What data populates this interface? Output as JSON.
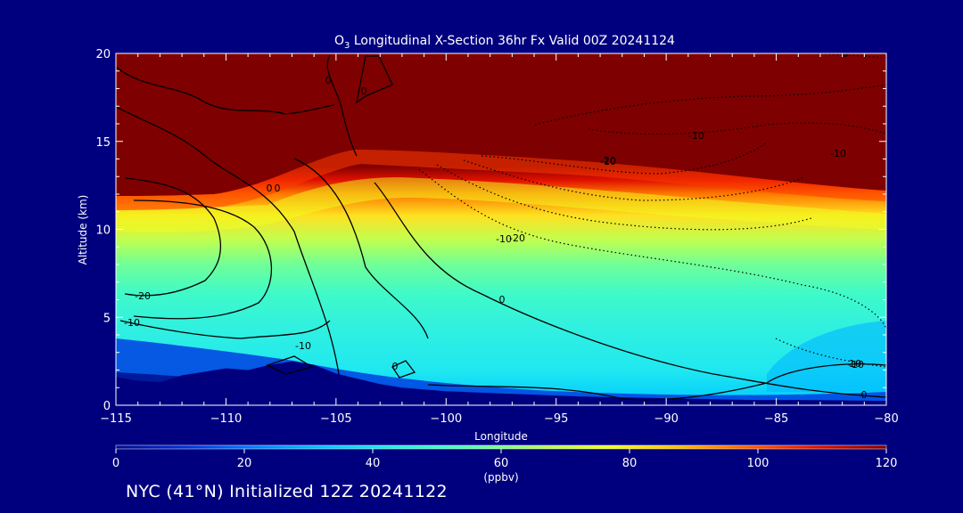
{
  "chart_data": {
    "type": "heatmap",
    "title_species_main": "O",
    "title_species_sub": "3",
    "title_rest": " Longitudinal X-Section 36hr  Fx Valid 00Z 20241124",
    "xlabel": "Longitude",
    "ylabel": "Altitude (km)",
    "xlim": [
      -115,
      -80
    ],
    "ylim": [
      0,
      20
    ],
    "x_ticks": [
      -115,
      -110,
      -105,
      -100,
      -95,
      -90,
      -85,
      -80
    ],
    "x_tick_labels": [
      "−115",
      "−110",
      "−105",
      "−100",
      "−95",
      "−90",
      "−85",
      "−80"
    ],
    "y_ticks": [
      0,
      5,
      10,
      15,
      20
    ],
    "y_tick_labels": [
      "0",
      "5",
      "10",
      "15",
      "20"
    ],
    "colorbar": {
      "label": "(ppbv)",
      "range": [
        0,
        120
      ],
      "ticks": [
        0,
        20,
        40,
        60,
        80,
        100,
        120
      ],
      "tick_labels": [
        "0",
        "20",
        "40",
        "60",
        "80",
        "100",
        "120"
      ],
      "colors": [
        "#000a8c",
        "#0030d8",
        "#0080ff",
        "#00c8ff",
        "#20f0e0",
        "#50ffb0",
        "#a8ff60",
        "#f0ff20",
        "#ffc000",
        "#ff6000",
        "#e01000",
        "#7f0000"
      ]
    },
    "terrain_profile": {
      "lon": [
        -115,
        -114,
        -113,
        -112,
        -111,
        -110,
        -109,
        -108,
        -107,
        -106,
        -105,
        -104,
        -103,
        -102,
        -101,
        -100,
        -98,
        -96,
        -94,
        -92,
        -90,
        -88,
        -86,
        -84,
        -82,
        -80
      ],
      "alt": [
        1.6,
        1.4,
        1.3,
        1.7,
        1.9,
        2.1,
        2.0,
        2.3,
        2.5,
        2.3,
        1.8,
        1.5,
        1.2,
        1.0,
        0.9,
        0.8,
        0.7,
        0.6,
        0.5,
        0.45,
        0.4,
        0.35,
        0.3,
        0.3,
        0.28,
        0.25
      ]
    },
    "tropopause_level_km": {
      "lon": [
        -115,
        -112,
        -110,
        -108,
        -106,
        -104,
        -102,
        -100,
        -97,
        -94,
        -91,
        -88,
        -85,
        -82,
        -80
      ],
      "alt": [
        11.5,
        11.7,
        11.6,
        12.2,
        13.8,
        14.0,
        14.0,
        13.8,
        13.5,
        13.0,
        12.6,
        12.2,
        11.9,
        11.7,
        11.6
      ]
    },
    "contour_labels": [
      "0",
      "0",
      "0",
      "0",
      "-20",
      "-10",
      "-10",
      "-20",
      "-10",
      "-10",
      "0",
      "-10",
      "-20",
      "-10",
      "0",
      "-10",
      "0",
      "0",
      "-10"
    ]
  },
  "footer": "NYC (41°N) Initialized 12Z 20241122"
}
